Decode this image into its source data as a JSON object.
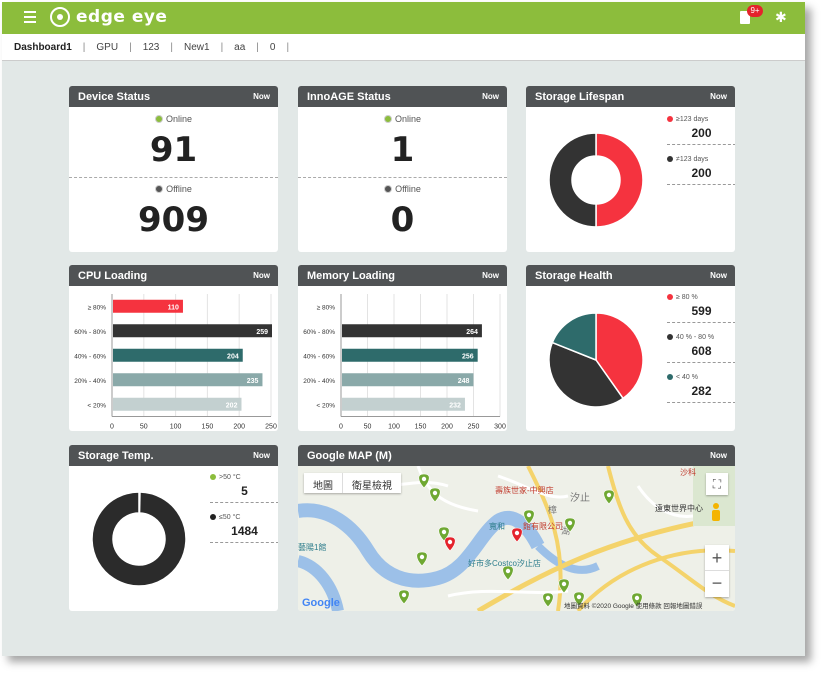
{
  "app": {
    "name": "edge eye",
    "notification_count": "9+"
  },
  "tabs": [
    "Dashboard1",
    "GPU",
    "123",
    "New1",
    "aa",
    "0"
  ],
  "now_label": "Now",
  "device_status": {
    "title": "Device Status",
    "online_label": "Online",
    "online_value": "91",
    "offline_label": "Offline",
    "offline_value": "909"
  },
  "innoage_status": {
    "title": "InnoAGE Status",
    "online_label": "Online",
    "online_value": "1",
    "offline_label": "Offline",
    "offline_value": "0"
  },
  "storage_lifespan": {
    "title": "Storage Lifespan",
    "legend": [
      {
        "label": "≥123 days",
        "value": "200",
        "color": "#f5333f"
      },
      {
        "label": "≠123 days",
        "value": "200",
        "color": "#333333"
      }
    ]
  },
  "cpu_loading": {
    "title": "CPU Loading"
  },
  "memory_loading": {
    "title": "Memory Loading"
  },
  "storage_health": {
    "title": "Storage Health",
    "legend": [
      {
        "label": "≥ 80 %",
        "value": "599",
        "color": "#f5333f"
      },
      {
        "label": "40 % - 80 %",
        "value": "608",
        "color": "#333333"
      },
      {
        "label": "< 40 %",
        "value": "282",
        "color": "#2e6b6b"
      }
    ]
  },
  "storage_temp": {
    "title": "Storage Temp.",
    "legend": [
      {
        "label": ">50 °C",
        "value": "5",
        "color": "#8cbd3c"
      },
      {
        "label": "≤50 °C",
        "value": "1484",
        "color": "#222222"
      }
    ]
  },
  "google_map": {
    "title": "Google MAP (M)",
    "map_type_map": "地圖",
    "map_type_satellite": "衛星檢視",
    "zoom_in": "+",
    "zoom_out": "−",
    "google_label": "Google",
    "attribution": "地圖資料 ©2020 Google   使用條款   回報地圖錯誤",
    "place_labels": [
      "壽族世家-中興店",
      "寬和",
      "館有限公司",
      "好市多Costco汐止店",
      "遠東世界中心",
      "汐止",
      "樟",
      "沙科",
      "藝陽1館",
      "湖"
    ]
  },
  "colors": {
    "accent": "#8cbd3c",
    "red": "#f5333f",
    "dark": "#333333",
    "teal": "#2e6b6b",
    "tealLight": "#8aa9a9",
    "gray": "#c3d0d0"
  },
  "chart_data": [
    {
      "type": "bar",
      "title": "CPU Loading",
      "categories": [
        "≥ 80%",
        "60% - 80%",
        "40% - 60%",
        "20% - 40%",
        "< 20%"
      ],
      "values": [
        110,
        259,
        204,
        235,
        202
      ],
      "xlim": [
        0,
        250
      ],
      "xticks": [
        0,
        50,
        100,
        150,
        200,
        250
      ],
      "orientation": "horizontal"
    },
    {
      "type": "bar",
      "title": "Memory Loading",
      "categories": [
        "≥ 80%",
        "60% - 80%",
        "40% - 60%",
        "20% - 40%",
        "< 20%"
      ],
      "values": [
        0,
        264,
        256,
        248,
        232
      ],
      "xlim": [
        0,
        300
      ],
      "xticks": [
        0,
        50,
        100,
        150,
        200,
        250,
        300
      ],
      "orientation": "horizontal"
    },
    {
      "type": "pie",
      "title": "Storage Lifespan",
      "labels": [
        "≥123 days",
        "≠123 days"
      ],
      "values": [
        200,
        200
      ],
      "donut": true
    },
    {
      "type": "pie",
      "title": "Storage Health",
      "labels": [
        "≥ 80 %",
        "40 % - 80 %",
        "< 40 %"
      ],
      "values": [
        599,
        608,
        282
      ]
    },
    {
      "type": "pie",
      "title": "Storage Temp.",
      "labels": [
        ">50 °C",
        "≤50 °C"
      ],
      "values": [
        5,
        1484
      ],
      "donut": true
    }
  ]
}
